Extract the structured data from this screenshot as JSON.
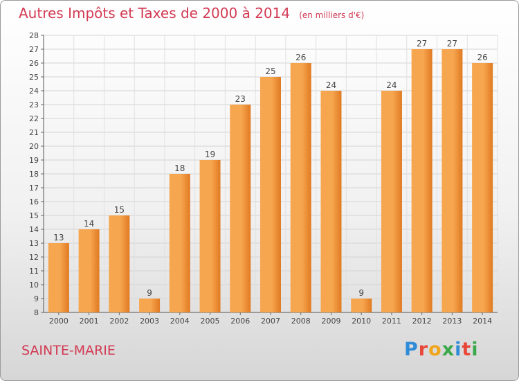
{
  "title": "Autres Impôts et Taxes de 2000 à 2014",
  "unit": "(en milliers d'€)",
  "town": "SAINTE-MARIE",
  "brand": {
    "letters": [
      "P",
      "r",
      "o",
      "x",
      "i",
      "t",
      "i"
    ],
    "colors": [
      "#2e8bd8",
      "#e8473a",
      "#f0a51a",
      "#3aa84a",
      "#2e8bd8",
      "#e8473a",
      "#3aa84a"
    ]
  },
  "colors": {
    "bar_light": "#f7a650",
    "bar_dark": "#e07a22",
    "title": "#d23a53"
  },
  "chart_data": {
    "type": "bar",
    "title": "Autres Impôts et Taxes de 2000 à 2014",
    "xlabel": "",
    "ylabel": "",
    "ylim": [
      8,
      28
    ],
    "yticks": [
      8,
      9,
      10,
      11,
      12,
      13,
      14,
      15,
      16,
      17,
      18,
      19,
      20,
      21,
      22,
      23,
      24,
      25,
      26,
      27,
      28
    ],
    "grid": true,
    "categories": [
      "2000",
      "2001",
      "2002",
      "2003",
      "2004",
      "2005",
      "2006",
      "2007",
      "2008",
      "2009",
      "2010",
      "2011",
      "2012",
      "2013",
      "2014"
    ],
    "values": [
      13,
      14,
      15,
      9,
      18,
      19,
      23,
      25,
      26,
      24,
      9,
      24,
      27,
      27,
      26
    ]
  }
}
